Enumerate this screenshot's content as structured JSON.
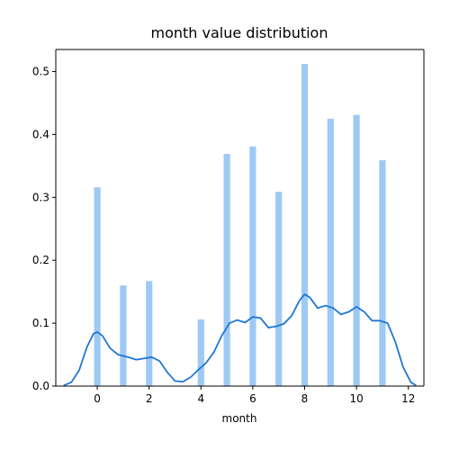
{
  "chart_data": {
    "type": "bar",
    "title": "month value distribution",
    "xlabel": "month",
    "ylabel": "",
    "xlim": [
      -1.6,
      12.6
    ],
    "ylim": [
      0,
      0.535
    ],
    "xticks": [
      0,
      2,
      4,
      6,
      8,
      10,
      12
    ],
    "yticks": [
      0.0,
      0.1,
      0.2,
      0.3,
      0.4,
      0.5
    ],
    "ytick_labels": [
      "0.0",
      "0.1",
      "0.2",
      "0.3",
      "0.4",
      "0.5"
    ],
    "grid": false,
    "bar_color": "#9ec9f5",
    "kde_color": "#1f77d4",
    "bar_width": 0.25,
    "histogram": {
      "x": [
        0,
        1,
        2,
        4,
        5,
        6,
        7,
        8,
        9,
        10,
        11
      ],
      "values": [
        0.316,
        0.16,
        0.167,
        0.106,
        0.369,
        0.381,
        0.309,
        0.512,
        0.425,
        0.431,
        0.359
      ]
    },
    "kde": {
      "x": [
        -1.3,
        -1.0,
        -0.7,
        -0.4,
        -0.15,
        0.0,
        0.2,
        0.5,
        0.8,
        1.2,
        1.5,
        1.8,
        2.1,
        2.4,
        2.7,
        3.0,
        3.3,
        3.6,
        3.9,
        4.2,
        4.5,
        4.8,
        5.1,
        5.4,
        5.7,
        6.0,
        6.3,
        6.6,
        6.9,
        7.2,
        7.5,
        7.8,
        8.0,
        8.2,
        8.5,
        8.8,
        9.1,
        9.4,
        9.7,
        10.0,
        10.3,
        10.6,
        10.9,
        11.2,
        11.5,
        11.8,
        12.1,
        12.3
      ],
      "y": [
        0.001,
        0.006,
        0.025,
        0.062,
        0.083,
        0.086,
        0.08,
        0.06,
        0.05,
        0.046,
        0.042,
        0.044,
        0.046,
        0.04,
        0.022,
        0.008,
        0.007,
        0.014,
        0.026,
        0.037,
        0.054,
        0.08,
        0.1,
        0.105,
        0.101,
        0.11,
        0.108,
        0.093,
        0.095,
        0.099,
        0.112,
        0.136,
        0.146,
        0.141,
        0.124,
        0.128,
        0.124,
        0.114,
        0.118,
        0.126,
        0.118,
        0.104,
        0.104,
        0.1,
        0.07,
        0.03,
        0.006,
        0.001
      ]
    }
  }
}
